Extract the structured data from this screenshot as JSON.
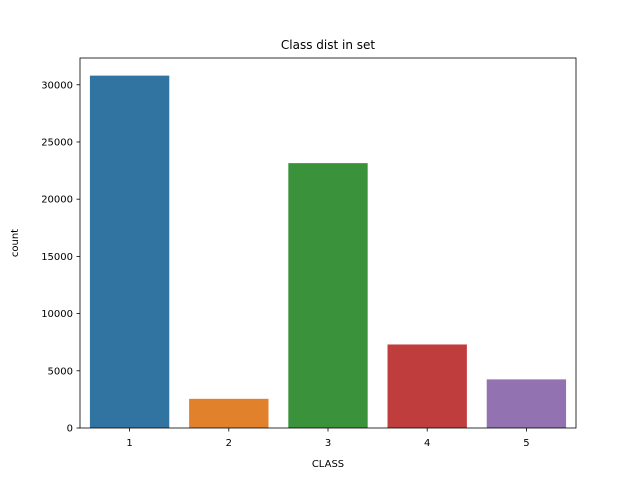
{
  "chart_data": {
    "type": "bar",
    "title": "Class dist in set",
    "xlabel": "CLASS",
    "ylabel": "count",
    "categories": [
      "1",
      "2",
      "3",
      "4",
      "5"
    ],
    "values": [
      30800,
      2550,
      23150,
      7300,
      4250
    ],
    "colors": [
      "#3274a1",
      "#e1812c",
      "#3a923a",
      "#c03d3e",
      "#9372b2"
    ],
    "ylim": [
      0,
      32340
    ],
    "yticks": [
      0,
      5000,
      10000,
      15000,
      20000,
      25000,
      30000
    ],
    "ytick_labels": [
      "0",
      "5000",
      "10000",
      "15000",
      "20000",
      "25000",
      "30000"
    ],
    "grid": false,
    "legend": false
  }
}
